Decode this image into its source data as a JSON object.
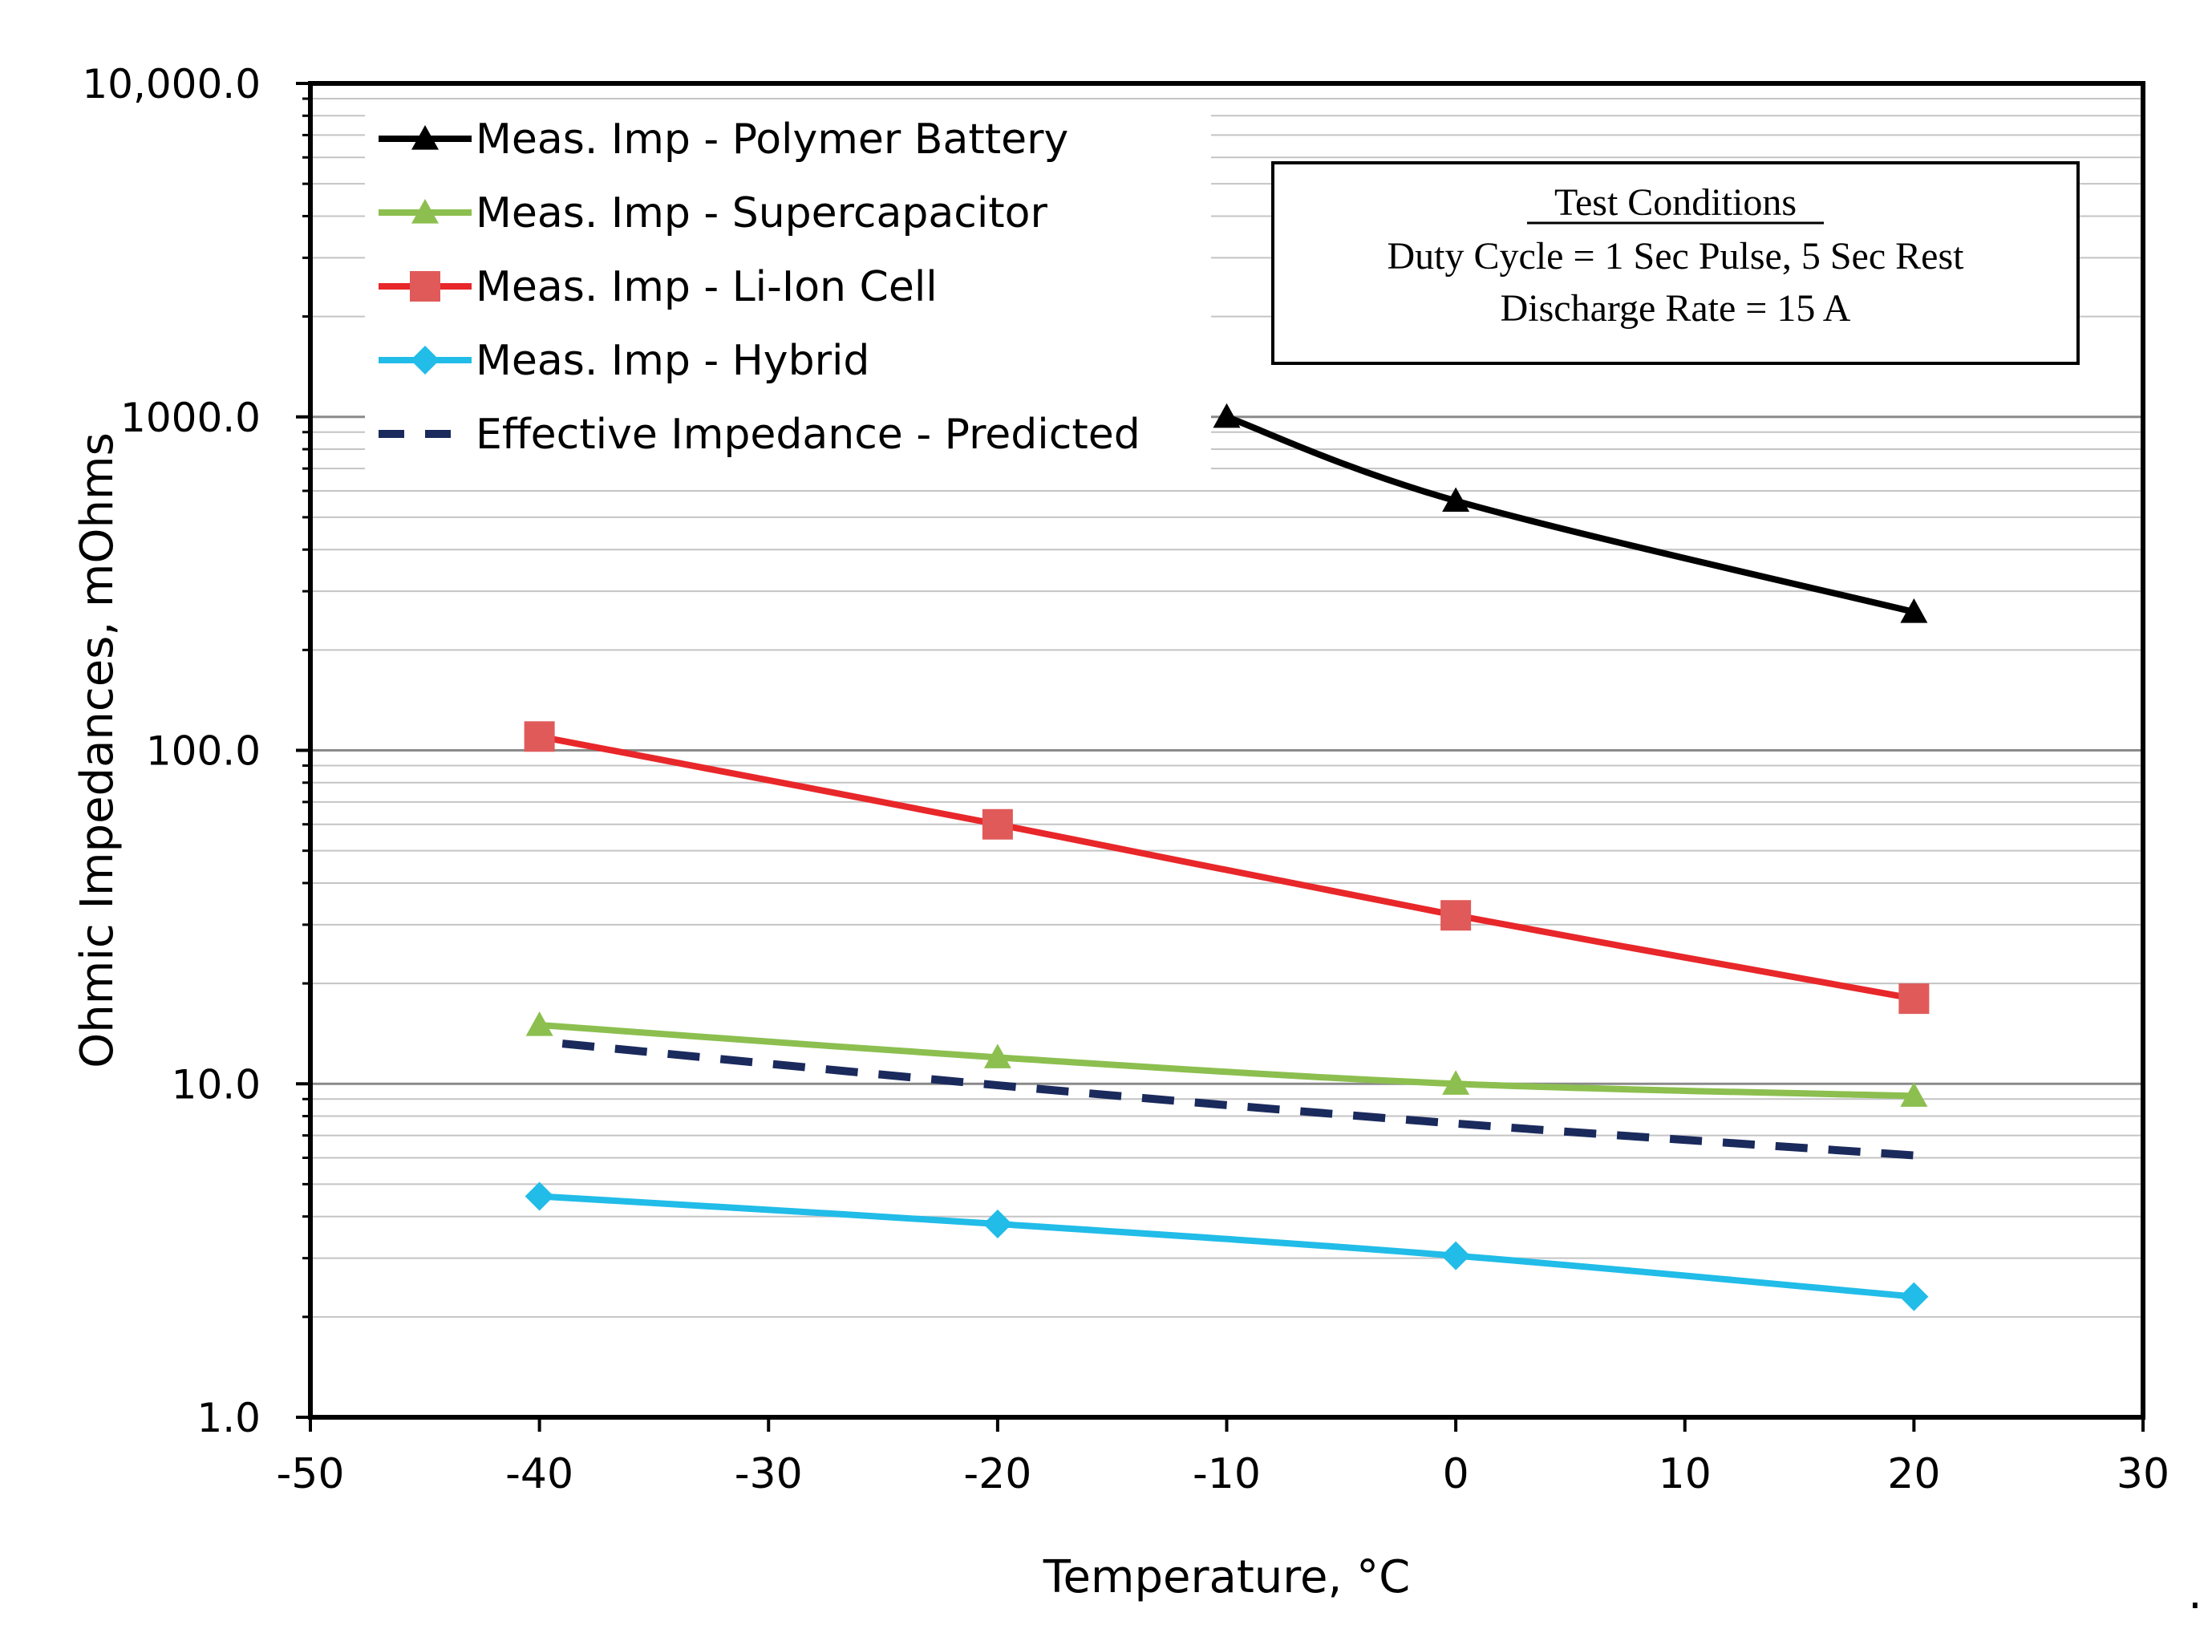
{
  "chart_data": {
    "type": "line",
    "title": "",
    "xlabel": "Temperature, °C",
    "ylabel": "Ohmic Impedances, mOhms",
    "xlim": [
      -50,
      30
    ],
    "ylim": [
      1,
      10000
    ],
    "y_scale": "log",
    "grid": "y-major-and-minor",
    "x_ticks": [
      -50,
      -40,
      -30,
      -20,
      -10,
      0,
      10,
      20,
      30
    ],
    "x_tick_labels": [
      "-50",
      "-40",
      "-30",
      "-20",
      "-10",
      "0",
      "10",
      "20",
      "30"
    ],
    "y_ticks": [
      1,
      10,
      100,
      1000,
      10000
    ],
    "y_tick_labels": [
      "1.0",
      "10.0",
      "100.0",
      "1000.0",
      "10,000.0"
    ],
    "legend_position": "top-left",
    "series": [
      {
        "name": "Meas. Imp - Polymer Battery",
        "color": "#000000",
        "marker": "triangle",
        "dash": "solid",
        "x": [
          -10,
          0,
          20
        ],
        "values": [
          1000,
          560,
          260
        ]
      },
      {
        "name": "Meas. Imp - Supercapacitor",
        "color": "#8cbf4f",
        "marker": "triangle",
        "dash": "solid",
        "x": [
          -40,
          -20,
          0,
          20
        ],
        "values": [
          15,
          12,
          10,
          9.2
        ]
      },
      {
        "name": "Meas. Imp - Li-Ion Cell",
        "color": "#e8272a",
        "marker_color": "#e05a5a",
        "marker": "square",
        "dash": "solid",
        "x": [
          -40,
          -20,
          0,
          20
        ],
        "values": [
          110,
          60,
          32,
          18
        ]
      },
      {
        "name": "Meas. Imp - Hybrid",
        "color": "#21bce8",
        "marker": "diamond",
        "dash": "solid",
        "x": [
          -40,
          -20,
          0,
          20
        ],
        "values": [
          4.6,
          3.8,
          3.05,
          2.3
        ]
      },
      {
        "name": "Effective Impedance - Predicted",
        "color": "#1b2a5c",
        "marker": "none",
        "dash": "dashed",
        "x": [
          -39,
          -20,
          0,
          20
        ],
        "values": [
          13.2,
          9.9,
          7.6,
          6.1
        ]
      }
    ],
    "annotation": {
      "title": "Test Conditions",
      "lines": [
        "Duty Cycle = 1 Sec Pulse, 5 Sec Rest",
        "Discharge Rate  = 15 A"
      ]
    }
  },
  "trailing_mark": "."
}
